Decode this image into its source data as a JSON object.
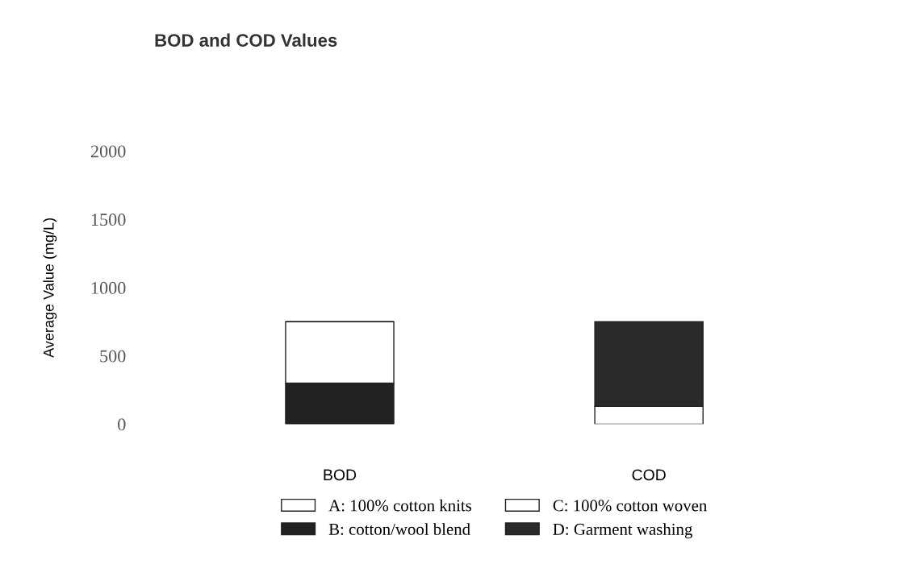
{
  "chart_data": {
    "type": "bar",
    "title": "BOD and COD Values",
    "ylabel": "Average Value (mg/L)",
    "categories": [
      "BOD",
      "COD"
    ],
    "stacked": true,
    "series": [
      {
        "name": "A: 100% cotton knits",
        "color": "#ffffff",
        "values": [
          0,
          130
        ]
      },
      {
        "name": "B: cotton/wool blend",
        "color": "#222222",
        "values": [
          300,
          0
        ]
      },
      {
        "name": "C: 100% cotton woven",
        "color": "#ffffff",
        "values": [
          450,
          0
        ]
      },
      {
        "name": "D: Garment washing",
        "color": "#2a2a2a",
        "values": [
          0,
          620
        ]
      }
    ],
    "ylim": [
      0,
      2000
    ],
    "yticks": [
      0,
      500,
      1000,
      1500,
      2000
    ],
    "legend": "bottom",
    "grid": false
  }
}
